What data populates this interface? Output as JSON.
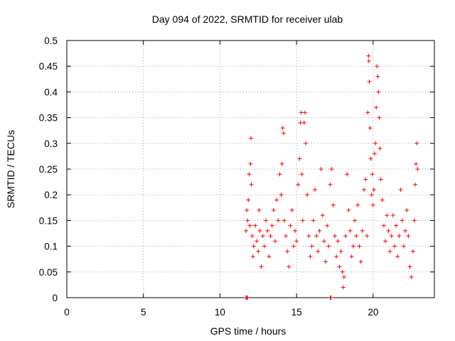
{
  "chart_data": {
    "type": "scatter",
    "title": "Day 094 of 2022, SRMTID for receiver ulab",
    "xlabel": "GPS time / hours",
    "ylabel": "SRMTID / TECUs",
    "xlim": [
      0,
      24
    ],
    "ylim": [
      0,
      0.5
    ],
    "x_ticks": [
      "0",
      "5",
      "10",
      "15",
      "20"
    ],
    "y_ticks": [
      "0",
      "0.05",
      "0.1",
      "0.15",
      "0.2",
      "0.25",
      "0.3",
      "0.35",
      "0.4",
      "0.45",
      "0.5"
    ],
    "grid": true,
    "marker": "+",
    "color": "#ff0000",
    "series": [
      {
        "name": "SRMTID",
        "points": [
          [
            11.7,
            0.13
          ],
          [
            11.75,
            0.17
          ],
          [
            11.8,
            0.15
          ],
          [
            11.85,
            0.19
          ],
          [
            11.9,
            0.24
          ],
          [
            11.95,
            0.14
          ],
          [
            12.0,
            0.26
          ],
          [
            12.02,
            0.31
          ],
          [
            12.05,
            0.22
          ],
          [
            12.1,
            0.12
          ],
          [
            12.15,
            0.08
          ],
          [
            12.2,
            0.1
          ],
          [
            12.3,
            0.14
          ],
          [
            12.4,
            0.11
          ],
          [
            12.5,
            0.09
          ],
          [
            12.55,
            0.17
          ],
          [
            12.6,
            0.13
          ],
          [
            12.7,
            0.06
          ],
          [
            12.8,
            0.12
          ],
          [
            12.9,
            0.1
          ],
          [
            13.0,
            0.15
          ],
          [
            13.1,
            0.13
          ],
          [
            13.2,
            0.08
          ],
          [
            13.3,
            0.12
          ],
          [
            13.4,
            0.14
          ],
          [
            13.5,
            0.17
          ],
          [
            13.6,
            0.11
          ],
          [
            13.7,
            0.19
          ],
          [
            13.8,
            0.15
          ],
          [
            13.9,
            0.24
          ],
          [
            14.0,
            0.2
          ],
          [
            14.05,
            0.26
          ],
          [
            14.1,
            0.33
          ],
          [
            14.15,
            0.32
          ],
          [
            14.2,
            0.15
          ],
          [
            14.3,
            0.12
          ],
          [
            14.4,
            0.09
          ],
          [
            14.5,
            0.06
          ],
          [
            14.6,
            0.14
          ],
          [
            14.7,
            0.17
          ],
          [
            14.8,
            0.1
          ],
          [
            14.9,
            0.13
          ],
          [
            15.0,
            0.11
          ],
          [
            15.1,
            0.22
          ],
          [
            15.2,
            0.27
          ],
          [
            15.25,
            0.34
          ],
          [
            15.3,
            0.36
          ],
          [
            15.35,
            0.24
          ],
          [
            15.4,
            0.15
          ],
          [
            15.5,
            0.34
          ],
          [
            15.55,
            0.36
          ],
          [
            15.6,
            0.3
          ],
          [
            15.7,
            0.2
          ],
          [
            15.8,
            0.12
          ],
          [
            15.9,
            0.08
          ],
          [
            16.0,
            0.1
          ],
          [
            16.1,
            0.15
          ],
          [
            16.2,
            0.21
          ],
          [
            16.3,
            0.12
          ],
          [
            16.4,
            0.09
          ],
          [
            16.5,
            0.13
          ],
          [
            16.6,
            0.25
          ],
          [
            16.7,
            0.16
          ],
          [
            16.8,
            0.11
          ],
          [
            16.9,
            0.07
          ],
          [
            17.0,
            0.14
          ],
          [
            17.1,
            0.1
          ],
          [
            17.2,
            0.22
          ],
          [
            17.3,
            0.25
          ],
          [
            17.4,
            0.18
          ],
          [
            17.5,
            0.12
          ],
          [
            17.6,
            0.08
          ],
          [
            17.7,
            0.11
          ],
          [
            17.8,
            0.06
          ],
          [
            17.9,
            0.09
          ],
          [
            18.0,
            0.05
          ],
          [
            18.05,
            0.02
          ],
          [
            18.1,
            0.04
          ],
          [
            18.2,
            0.12
          ],
          [
            18.3,
            0.24
          ],
          [
            18.4,
            0.17
          ],
          [
            18.5,
            0.13
          ],
          [
            18.6,
            0.08
          ],
          [
            18.7,
            0.1
          ],
          [
            18.8,
            0.15
          ],
          [
            18.9,
            0.12
          ],
          [
            19.0,
            0.18
          ],
          [
            19.1,
            0.1
          ],
          [
            19.2,
            0.07
          ],
          [
            19.3,
            0.13
          ],
          [
            19.4,
            0.21
          ],
          [
            19.5,
            0.23
          ],
          [
            19.6,
            0.12
          ],
          [
            19.65,
            0.36
          ],
          [
            19.7,
            0.47
          ],
          [
            19.72,
            0.46
          ],
          [
            19.75,
            0.42
          ],
          [
            19.8,
            0.33
          ],
          [
            19.85,
            0.27
          ],
          [
            19.9,
            0.2
          ],
          [
            19.95,
            0.24
          ],
          [
            20.0,
            0.18
          ],
          [
            20.05,
            0.21
          ],
          [
            20.1,
            0.28
          ],
          [
            20.15,
            0.3
          ],
          [
            20.2,
            0.37
          ],
          [
            20.25,
            0.45
          ],
          [
            20.3,
            0.43
          ],
          [
            20.35,
            0.4
          ],
          [
            20.4,
            0.35
          ],
          [
            20.45,
            0.29
          ],
          [
            20.5,
            0.23
          ],
          [
            20.6,
            0.19
          ],
          [
            20.7,
            0.14
          ],
          [
            20.8,
            0.11
          ],
          [
            20.9,
            0.16
          ],
          [
            21.0,
            0.13
          ],
          [
            21.1,
            0.09
          ],
          [
            21.2,
            0.12
          ],
          [
            21.3,
            0.16
          ],
          [
            21.4,
            0.1
          ],
          [
            21.5,
            0.14
          ],
          [
            21.6,
            0.08
          ],
          [
            21.7,
            0.12
          ],
          [
            21.8,
            0.21
          ],
          [
            21.9,
            0.15
          ],
          [
            22.0,
            0.1
          ],
          [
            22.1,
            0.13
          ],
          [
            22.2,
            0.17
          ],
          [
            22.3,
            0.12
          ],
          [
            22.4,
            0.06
          ],
          [
            22.5,
            0.04
          ],
          [
            22.6,
            0.09
          ],
          [
            22.7,
            0.15
          ],
          [
            22.75,
            0.22
          ],
          [
            22.8,
            0.26
          ],
          [
            22.85,
            0.3
          ],
          [
            22.9,
            0.25
          ],
          [
            11.7,
            0.0
          ],
          [
            11.75,
            0.0
          ],
          [
            11.8,
            0.0
          ],
          [
            17.2,
            0.0
          ],
          [
            17.25,
            0.0
          ]
        ]
      }
    ]
  }
}
